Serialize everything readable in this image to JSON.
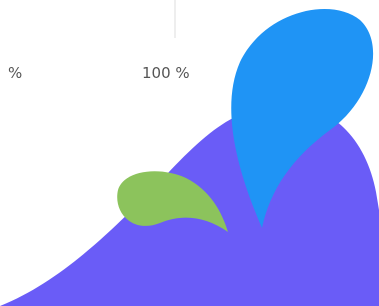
{
  "labels": {
    "left": "%",
    "right": "100 %"
  }
}
